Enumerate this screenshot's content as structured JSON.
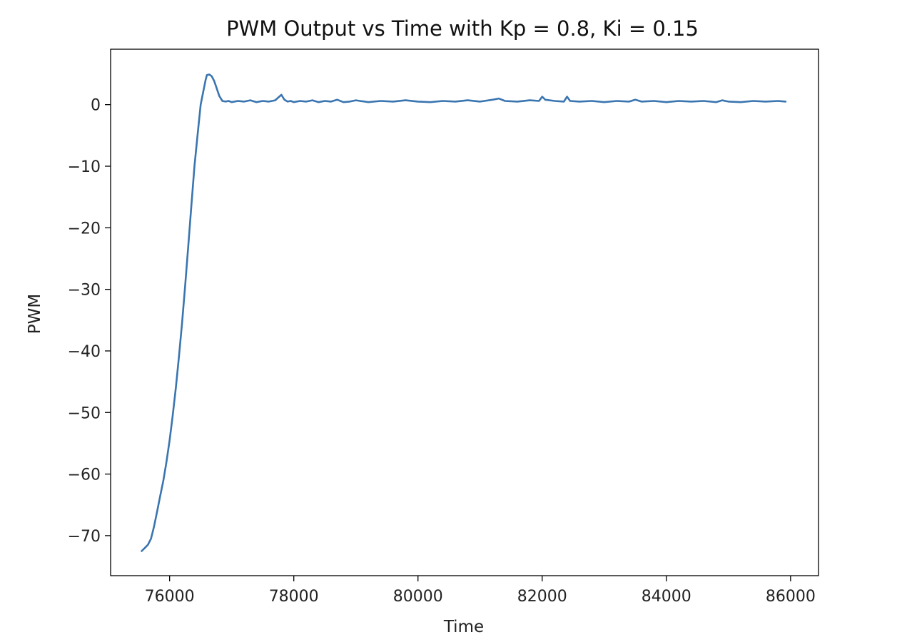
{
  "chart_data": {
    "type": "line",
    "title": "PWM Output vs Time with Kp = 0.8, Ki = 0.15",
    "xlabel": "Time",
    "ylabel": "PWM",
    "xlim": [
      75050,
      86450
    ],
    "ylim": [
      -76.5,
      9
    ],
    "xticks": [
      76000,
      78000,
      80000,
      82000,
      84000,
      86000
    ],
    "yticks": [
      0,
      -10,
      -20,
      -30,
      -40,
      -50,
      -60,
      -70
    ],
    "xtick_labels": [
      "76000",
      "78000",
      "80000",
      "82000",
      "84000",
      "86000"
    ],
    "ytick_labels": [
      "0",
      "−10",
      "−20",
      "−30",
      "−40",
      "−50",
      "−60",
      "−70"
    ],
    "grid": false,
    "series": [
      {
        "color": "#3a75b0",
        "x": [
          75550,
          75600,
          75650,
          75700,
          75750,
          75800,
          75850,
          75900,
          75950,
          76000,
          76050,
          76100,
          76150,
          76200,
          76250,
          76300,
          76350,
          76400,
          76450,
          76500,
          76550,
          76580,
          76600,
          76640,
          76680,
          76720,
          76760,
          76800,
          76850,
          76900,
          76950,
          77000,
          77100,
          77200,
          77300,
          77400,
          77500,
          77600,
          77700,
          77800,
          77850,
          77900,
          77950,
          78000,
          78100,
          78200,
          78300,
          78400,
          78500,
          78600,
          78700,
          78800,
          78900,
          79000,
          79200,
          79400,
          79600,
          79800,
          80000,
          80200,
          80400,
          80600,
          80800,
          81000,
          81200,
          81300,
          81400,
          81600,
          81800,
          81950,
          82000,
          82050,
          82200,
          82350,
          82400,
          82450,
          82600,
          82800,
          83000,
          83200,
          83400,
          83500,
          83600,
          83800,
          84000,
          84200,
          84400,
          84600,
          84800,
          84900,
          85000,
          85200,
          85400,
          85600,
          85800,
          85920
        ],
        "y": [
          -72.5,
          -72,
          -71.5,
          -70.5,
          -68.5,
          -66,
          -63.5,
          -61,
          -58,
          -54.5,
          -50.5,
          -46,
          -41,
          -35.5,
          -29.5,
          -23,
          -16.5,
          -10,
          -5,
          0,
          2.5,
          4,
          4.8,
          4.9,
          4.6,
          3.8,
          2.6,
          1.4,
          0.6,
          0.5,
          0.6,
          0.4,
          0.6,
          0.5,
          0.7,
          0.4,
          0.6,
          0.5,
          0.7,
          1.6,
          0.8,
          0.5,
          0.6,
          0.4,
          0.6,
          0.5,
          0.7,
          0.4,
          0.6,
          0.5,
          0.8,
          0.4,
          0.5,
          0.7,
          0.4,
          0.6,
          0.5,
          0.7,
          0.5,
          0.4,
          0.6,
          0.5,
          0.7,
          0.5,
          0.8,
          1.0,
          0.6,
          0.5,
          0.7,
          0.6,
          1.3,
          0.8,
          0.6,
          0.5,
          1.3,
          0.6,
          0.5,
          0.6,
          0.4,
          0.6,
          0.5,
          0.8,
          0.5,
          0.6,
          0.4,
          0.6,
          0.5,
          0.6,
          0.4,
          0.7,
          0.5,
          0.4,
          0.6,
          0.5,
          0.6,
          0.5
        ]
      }
    ]
  }
}
